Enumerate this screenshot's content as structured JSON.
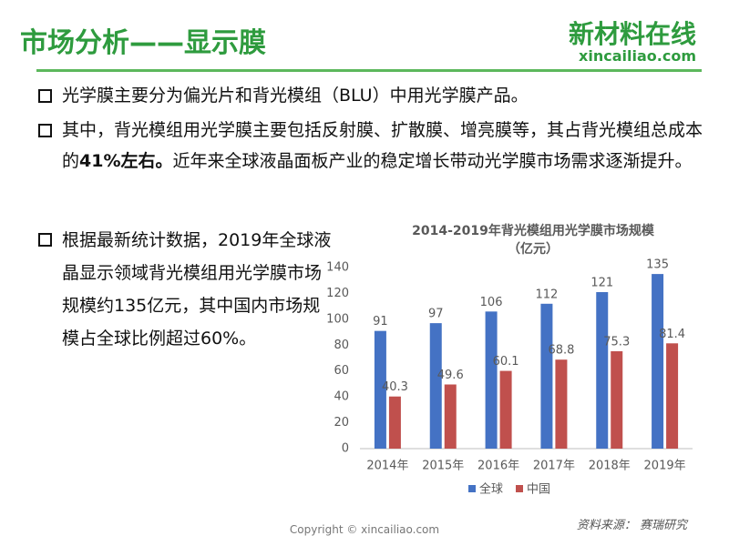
{
  "header": {
    "title": "市场分析——显示膜",
    "logo": "新材料在线",
    "logo_url": "xincailiao.com"
  },
  "bullets": [
    [
      "光学膜主要分为偏光片和背光模组（BLU）中用光学膜产品。"
    ],
    [
      "其中，背光模组用光学膜主要包括反射膜、扩散膜、增亮膜等，其占背光模组总成本的",
      "41%左右。",
      "近年来全球液晶面板产业的稳定增长带动光学膜市场需求逐渐提升。"
    ],
    [
      "根据最新统计数据，2019年全球液晶显示领域背光模组用光学膜市场规模约135亿元，其中国内市场规模占全球比例超过60%。"
    ]
  ],
  "chart_data": {
    "type": "bar",
    "title": "2014-2019年背光模组用光学膜市场规模",
    "subtitle": "（亿元）",
    "categories": [
      "2014年",
      "2015年",
      "2016年",
      "2017年",
      "2018年",
      "2019年"
    ],
    "series": [
      {
        "name": "全球",
        "color": "#4472c4",
        "values": [
          91,
          97,
          106,
          112,
          121,
          135
        ]
      },
      {
        "name": "中国",
        "color": "#c0504d",
        "values": [
          40.3,
          49.6,
          60.1,
          68.8,
          75.3,
          81.4
        ]
      }
    ],
    "ylim": [
      0,
      140
    ],
    "yticks": [
      0,
      20,
      40,
      60,
      80,
      100,
      120,
      140
    ],
    "grid": false,
    "legend": "bottom"
  },
  "footer": {
    "copyright": "Copyright © xincailiao.com",
    "source": "资料来源： 赛瑞研究"
  }
}
